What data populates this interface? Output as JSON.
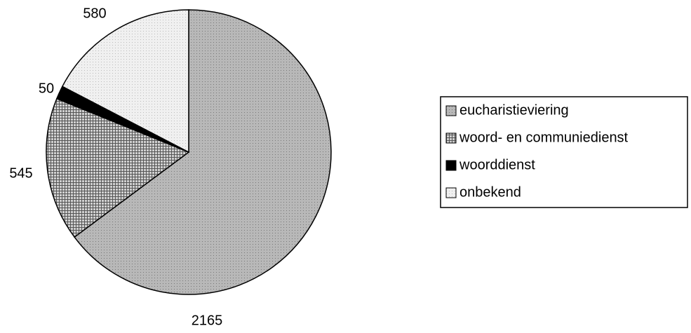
{
  "chart_data": {
    "type": "pie",
    "categories": [
      "eucharistieviering",
      "woord- en communiedienst",
      "woorddienst",
      "onbekend"
    ],
    "values": [
      2165,
      545,
      50,
      580
    ],
    "colors": [
      "#b8b8b8",
      "#d0d0d0",
      "#000000",
      "#f0f0f0"
    ],
    "legend": "right"
  }
}
